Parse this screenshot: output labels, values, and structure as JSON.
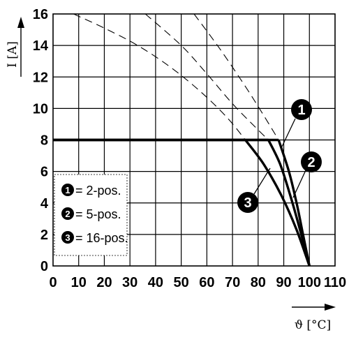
{
  "chart_data": {
    "type": "line",
    "xlabel": "ϑ [°C]",
    "ylabel": "I [A]",
    "xlim": [
      0,
      110
    ],
    "ylim": [
      0,
      16
    ],
    "x_ticks": [
      "0",
      "10",
      "20",
      "30",
      "40",
      "50",
      "60",
      "70",
      "80",
      "90",
      "100",
      "110"
    ],
    "y_ticks": [
      "0",
      "2",
      "4",
      "6",
      "8",
      "10",
      "12",
      "14",
      "16"
    ],
    "grid": true,
    "legend_position": "bottom-left",
    "series": [
      {
        "name": "2-pos.",
        "badge": "1",
        "points": [
          [
            0,
            8
          ],
          [
            88,
            8
          ],
          [
            92,
            6
          ],
          [
            95,
            4
          ],
          [
            97.5,
            2
          ],
          [
            100,
            0
          ]
        ],
        "extension": [
          [
            55,
            16
          ],
          [
            65,
            13.8
          ],
          [
            75,
            11.4
          ],
          [
            82,
            9.6
          ],
          [
            88,
            8
          ]
        ]
      },
      {
        "name": "5-pos.",
        "badge": "2",
        "points": [
          [
            0,
            8
          ],
          [
            84,
            8
          ],
          [
            88.5,
            6.5
          ],
          [
            92.5,
            4.5
          ],
          [
            96.5,
            2.2
          ],
          [
            100,
            0
          ]
        ],
        "extension": [
          [
            36,
            16
          ],
          [
            50,
            14
          ],
          [
            60,
            12.2
          ],
          [
            70,
            10.3
          ],
          [
            79,
            8.8
          ],
          [
            84,
            8
          ]
        ]
      },
      {
        "name": "16-pos.",
        "badge": "3",
        "points": [
          [
            0,
            8
          ],
          [
            75,
            8
          ],
          [
            82,
            6.5
          ],
          [
            89,
            4.5
          ],
          [
            95,
            2.3
          ],
          [
            100,
            0
          ]
        ],
        "extension": [
          [
            8,
            16
          ],
          [
            20,
            15.1
          ],
          [
            33,
            14
          ],
          [
            46,
            12.6
          ],
          [
            58,
            11
          ],
          [
            68,
            9.4
          ],
          [
            75,
            8
          ]
        ]
      }
    ],
    "legend": [
      {
        "badge": "1",
        "label": "= 2-pos."
      },
      {
        "badge": "2",
        "label": "= 5-pos."
      },
      {
        "badge": "3",
        "label": "= 16-pos."
      }
    ],
    "callouts": [
      "1",
      "2",
      "3"
    ]
  }
}
